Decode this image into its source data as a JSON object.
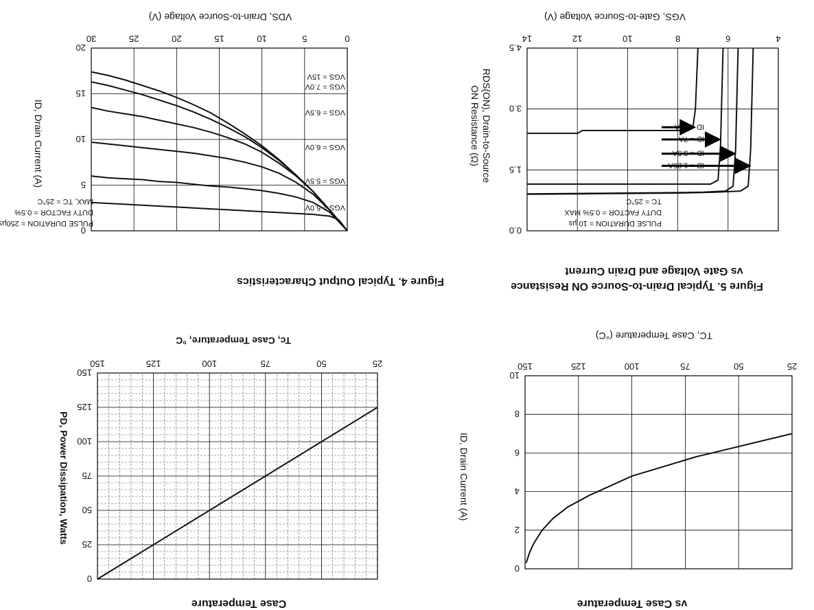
{
  "chart_data": [
    {
      "id": "fig4",
      "type": "line",
      "title": "Figure 4. Typical Output Characteristics",
      "xlabel": "VDS, Drain-to-Source Voltage (V)",
      "ylabel": "ID, Drain Current (A)",
      "xlim": [
        0,
        30
      ],
      "ylim": [
        0,
        20
      ],
      "xticks": [
        "0",
        "5",
        "10",
        "15",
        "20",
        "25",
        "30"
      ],
      "yticks": [
        "0",
        "5",
        "10",
        "15",
        "20"
      ],
      "annotations": [
        "PULSE DURATION = 250µs",
        "DUTY FACTOR = 0.5%",
        "MAX, TC = 25°C"
      ],
      "series": [
        {
          "name": "VGS = 15V",
          "x": [
            0,
            2,
            4,
            6,
            8,
            10,
            12,
            14,
            16,
            18,
            20,
            22,
            24,
            26,
            28,
            30
          ],
          "y": [
            0,
            2.2,
            4.3,
            6.1,
            7.8,
            9.3,
            10.6,
            11.8,
            12.9,
            13.8,
            14.6,
            15.3,
            15.9,
            16.5,
            17.0,
            17.4
          ]
        },
        {
          "name": "VGS = 7.0V",
          "x": [
            0,
            2,
            4,
            6,
            8,
            10,
            12,
            14,
            16,
            18,
            20,
            22,
            24,
            26,
            28,
            30
          ],
          "y": [
            0,
            2.2,
            4.3,
            6.1,
            7.7,
            9.1,
            10.3,
            11.3,
            12.2,
            13.0,
            13.7,
            14.3,
            14.9,
            15.4,
            15.9,
            16.3
          ]
        },
        {
          "name": "VGS = 6.5V",
          "x": [
            0,
            2,
            4,
            6,
            8,
            10,
            12,
            14,
            16,
            18,
            20,
            22,
            24,
            26,
            28,
            30
          ],
          "y": [
            0,
            2.2,
            4.3,
            6.0,
            7.4,
            8.6,
            9.5,
            10.2,
            10.8,
            11.3,
            11.7,
            12.1,
            12.5,
            12.8,
            13.1,
            13.5
          ]
        },
        {
          "name": "VGS = 6.0V",
          "x": [
            0,
            2,
            4,
            6,
            8,
            10,
            12,
            14,
            16,
            18,
            20,
            22,
            24,
            26,
            28,
            30
          ],
          "y": [
            0,
            2.2,
            4.0,
            5.3,
            6.3,
            7.0,
            7.5,
            7.9,
            8.2,
            8.5,
            8.7,
            8.9,
            9.1,
            9.3,
            9.5,
            9.7
          ]
        },
        {
          "name": "VGS = 5.5V",
          "x": [
            0,
            2,
            4,
            6,
            8,
            10,
            12,
            14,
            16,
            18,
            20,
            22,
            24,
            26,
            28,
            30
          ],
          "y": [
            0,
            2.0,
            3.1,
            3.7,
            4.1,
            4.4,
            4.6,
            4.8,
            4.9,
            5.1,
            5.3,
            5.4,
            5.6,
            5.7,
            5.8,
            6.0
          ]
        },
        {
          "name": "VGS = 5.0V",
          "x": [
            0,
            1,
            2,
            4,
            6,
            8,
            10,
            12,
            14,
            16,
            18,
            20,
            22,
            24,
            26,
            28,
            30
          ],
          "y": [
            0,
            1.2,
            1.6,
            1.8,
            1.9,
            2.0,
            2.1,
            2.2,
            2.3,
            2.4,
            2.5,
            2.6,
            2.7,
            2.8,
            2.9,
            3.0,
            3.1
          ]
        }
      ]
    },
    {
      "id": "fig5",
      "type": "line",
      "title": "Figure 5.    Typical Drain-to-Source ON Resistance",
      "subtitle": "vs Gate Voltage and Drain Current",
      "xlabel": "VGS, Gate-to-Source Voltage (V)",
      "ylabel_line1": "RDS(ON), Drain-to-Source",
      "ylabel_line2": "ON Resistance (Ω)",
      "xlim": [
        4,
        14
      ],
      "ylim": [
        0,
        4.5
      ],
      "xticks": [
        "4",
        "6",
        "8",
        "10",
        "12",
        "14"
      ],
      "yticks": [
        "0.0",
        "1.5",
        "3.0",
        "4.5"
      ],
      "annotations": [
        "PULSE DURATION = 10 µs",
        "DUTY FACTOR = 0.5% MAX",
        "TC = 25°C"
      ],
      "series": [
        {
          "name": "ID = 1.25A",
          "x": [
            5.0,
            5.1,
            5.2,
            5.5,
            6.5,
            8,
            10,
            12,
            14
          ],
          "y": [
            4.5,
            2.0,
            1.1,
            0.98,
            0.95,
            0.93,
            0.92,
            0.91,
            0.9
          ]
        },
        {
          "name": "ID = 3.5A",
          "x": [
            5.6,
            5.7,
            5.8,
            6.1,
            7,
            8,
            10,
            12,
            14
          ],
          "y": [
            4.5,
            2.0,
            1.1,
            0.98,
            0.95,
            0.94,
            0.93,
            0.92,
            0.91
          ]
        },
        {
          "name": "ID = 7A",
          "x": [
            6.2,
            6.3,
            6.4,
            6.7,
            7.5,
            9,
            11,
            14
          ],
          "y": [
            4.5,
            2.1,
            1.25,
            1.15,
            1.15,
            1.15,
            1.15,
            1.15
          ]
        },
        {
          "name": "ID = 14A",
          "x": [
            7.2,
            7.3,
            7.4,
            7.8,
            8.5,
            10,
            11.8,
            12,
            14
          ],
          "y": [
            4.5,
            3.0,
            2.55,
            2.47,
            2.47,
            2.47,
            2.47,
            2.4,
            2.4
          ]
        }
      ]
    },
    {
      "id": "fig6",
      "type": "line",
      "title": "Case Temperature",
      "xlabel": "Tc, Case Temperature, °C",
      "ylabel": "PD, Power Dissipation, Watts",
      "xlim": [
        25,
        150
      ],
      "ylim": [
        0,
        150
      ],
      "xticks": [
        "25",
        "50",
        "75",
        "100",
        "125",
        "150"
      ],
      "yticks": [
        "0",
        "25",
        "50",
        "75",
        "100",
        "125",
        "150"
      ],
      "series": [
        {
          "name": "PD",
          "x": [
            25,
            150
          ],
          "y": [
            125,
            0
          ]
        }
      ]
    },
    {
      "id": "fig7",
      "type": "line",
      "title": "vs Case Temperature",
      "xlabel": "TC, Case Temperature (°C)",
      "ylabel": "ID, Drain Current (A)",
      "xlim": [
        25,
        150
      ],
      "ylim": [
        0,
        10
      ],
      "xticks": [
        "25",
        "50",
        "75",
        "100",
        "125",
        "150"
      ],
      "yticks": [
        "0",
        "2",
        "4",
        "6",
        "8",
        "10"
      ],
      "series": [
        {
          "name": "ID",
          "x": [
            25,
            40,
            55,
            70,
            85,
            100,
            110,
            120,
            130,
            137,
            142,
            146,
            148,
            149.5
          ],
          "y": [
            7.0,
            6.6,
            6.2,
            5.8,
            5.3,
            4.8,
            4.3,
            3.8,
            3.2,
            2.6,
            2.0,
            1.3,
            0.8,
            0.3
          ]
        }
      ]
    }
  ]
}
